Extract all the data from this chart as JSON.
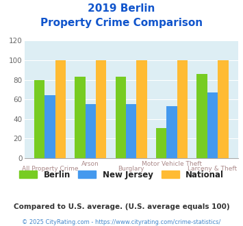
{
  "title_line1": "2019 Berlin",
  "title_line2": "Property Crime Comparison",
  "categories_top": [
    "",
    "Arson",
    "",
    "Motor Vehicle Theft",
    ""
  ],
  "categories_bot": [
    "All Property Crime",
    "",
    "Burglary",
    "",
    "Larceny & Theft"
  ],
  "berlin": [
    80,
    83,
    83,
    31,
    86
  ],
  "new_jersey": [
    64,
    55,
    55,
    53,
    67
  ],
  "national": [
    100,
    100,
    100,
    100,
    100
  ],
  "berlin_color": "#77cc22",
  "nj_color": "#4499ee",
  "national_color": "#ffbb33",
  "ylim": [
    0,
    120
  ],
  "yticks": [
    0,
    20,
    40,
    60,
    80,
    100,
    120
  ],
  "legend_labels": [
    "Berlin",
    "New Jersey",
    "National"
  ],
  "footnote1": "Compared to U.S. average. (U.S. average equals 100)",
  "footnote2": "© 2025 CityRating.com - https://www.cityrating.com/crime-statistics/",
  "bg_color": "#ddeef4",
  "title_color": "#1155cc",
  "xticklabel_color": "#aa8888",
  "footnote1_color": "#333333",
  "footnote2_color": "#4488cc",
  "legend_text_color": "#222222"
}
